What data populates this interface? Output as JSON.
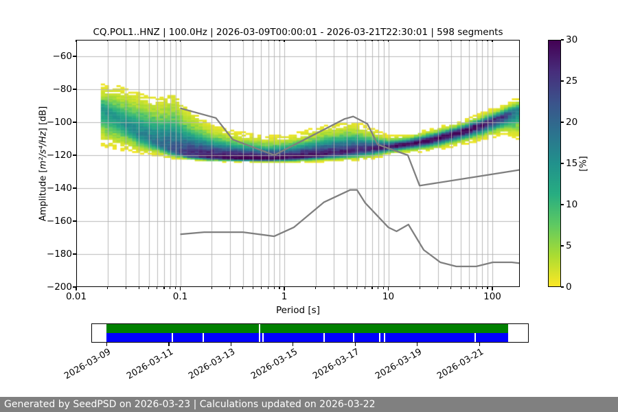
{
  "title": "CQ.POL1..HNZ | 100.0Hz | 2026-03-09T00:00:01 - 2026-03-21T22:30:01 | 598 segments",
  "footer": "Generated by SeedPSD on 2026-03-23 | Calculations updated on 2026-03-22",
  "chart_data": {
    "type": "heatmap",
    "title": "CQ.POL1..HNZ | 100.0Hz | 2026-03-09T00:00:01 - 2026-03-21T22:30:01 | 598 segments",
    "xlabel": "Period [s]",
    "ylabel": {
      "pre": "Amplitude [",
      "math": "m²/s⁴/Hz",
      "post": "] [dB]"
    },
    "xscale": "log",
    "xlim": [
      0.01,
      183.65
    ],
    "ylim": [
      -200,
      -50
    ],
    "grid": true,
    "grid_color": "#b0b0b0",
    "xticks": [
      {
        "v": 0.01,
        "label": "0.01"
      },
      {
        "v": 0.1,
        "label": "0.1"
      },
      {
        "v": 1,
        "label": "1"
      },
      {
        "v": 10,
        "label": "10"
      },
      {
        "v": 100,
        "label": "100"
      }
    ],
    "yticks": [
      {
        "v": -60,
        "label": "−60"
      },
      {
        "v": -80,
        "label": "−80"
      },
      {
        "v": -100,
        "label": "−100"
      },
      {
        "v": -120,
        "label": "−120"
      },
      {
        "v": -140,
        "label": "−140"
      },
      {
        "v": -160,
        "label": "−160"
      },
      {
        "v": -180,
        "label": "−180"
      },
      {
        "v": -200,
        "label": "−200"
      }
    ],
    "colorbar": {
      "label": "[%]",
      "range": [
        0,
        30
      ],
      "ticks": [
        {
          "v": 0,
          "label": "0"
        },
        {
          "v": 5,
          "label": "5"
        },
        {
          "v": 10,
          "label": "10"
        },
        {
          "v": 15,
          "label": "15"
        },
        {
          "v": 20,
          "label": "20"
        },
        {
          "v": 25,
          "label": "25"
        },
        {
          "v": 30,
          "label": "30"
        }
      ],
      "colormap": "viridis_r",
      "viridis_stops": [
        "#440154",
        "#472d7b",
        "#3b528b",
        "#2c728e",
        "#21918c",
        "#27ad81",
        "#5ec962",
        "#aadc32",
        "#fde725"
      ]
    },
    "ppsd_distribution": {
      "comment": "estimated PPSD histogram envelope per period: [period_s, top_dB, mode_dB, bottom_dB, peak_percent]",
      "period_step_octaves": 0.125,
      "period_min": 0.018,
      "keypoints": [
        [
          0.018,
          -81,
          -94,
          -112,
          13
        ],
        [
          0.025,
          -82,
          -99,
          -114,
          13
        ],
        [
          0.04,
          -86,
          -108,
          -117,
          15
        ],
        [
          0.06,
          -90,
          -113,
          -119,
          17
        ],
        [
          0.085,
          -88,
          -117.5,
          -121.5,
          20
        ],
        [
          0.12,
          -97,
          -120.5,
          -122.5,
          24
        ],
        [
          0.2,
          -106,
          -121.5,
          -123.5,
          28
        ],
        [
          0.35,
          -110,
          -122,
          -123.5,
          30
        ],
        [
          0.7,
          -112,
          -122.3,
          -124,
          30
        ],
        [
          1.2,
          -111,
          -121.5,
          -124,
          29
        ],
        [
          2.5,
          -106,
          -120,
          -123,
          27
        ],
        [
          4.5,
          -104,
          -118,
          -122.5,
          25
        ],
        [
          7,
          -107,
          -116.5,
          -121,
          26
        ],
        [
          10,
          -110,
          -115,
          -119,
          28
        ],
        [
          15,
          -109,
          -113.5,
          -117.5,
          29
        ],
        [
          25,
          -106,
          -111,
          -116,
          30
        ],
        [
          50,
          -101,
          -106,
          -112,
          30
        ],
        [
          90,
          -95,
          -100.5,
          -108,
          28
        ],
        [
          130,
          -91,
          -96.5,
          -105,
          24
        ],
        [
          183.65,
          -86.5,
          -92.5,
          -108,
          15
        ]
      ]
    },
    "noise_models": {
      "color": "#7f7f7f",
      "line_width": 2.3,
      "nhnm": [
        [
          0.1,
          -91.5
        ],
        [
          0.22,
          -97.4
        ],
        [
          0.32,
          -110.5
        ],
        [
          0.8,
          -120.0
        ],
        [
          3.8,
          -98.0
        ],
        [
          4.6,
          -96.5
        ],
        [
          6.3,
          -101.0
        ],
        [
          7.9,
          -113.5
        ],
        [
          15.4,
          -120.0
        ],
        [
          20.0,
          -138.5
        ],
        [
          183.65,
          -128.9
        ]
      ],
      "nlnm": [
        [
          0.1,
          -168.0
        ],
        [
          0.17,
          -166.7
        ],
        [
          0.4,
          -166.7
        ],
        [
          0.8,
          -169.2
        ],
        [
          1.24,
          -163.7
        ],
        [
          2.4,
          -148.6
        ],
        [
          4.3,
          -141.1
        ],
        [
          5.0,
          -141.1
        ],
        [
          6.0,
          -149.0
        ],
        [
          10.0,
          -163.8
        ],
        [
          12.0,
          -166.2
        ],
        [
          15.6,
          -162.1
        ],
        [
          21.9,
          -177.5
        ],
        [
          31.6,
          -185.0
        ],
        [
          45.0,
          -187.5
        ],
        [
          70.0,
          -187.5
        ],
        [
          101.0,
          -185.0
        ],
        [
          154.0,
          -185.0
        ],
        [
          183.65,
          -185.6
        ]
      ]
    }
  },
  "timeline": {
    "start": "2026-03-09T00:00:01",
    "end": "2026-03-21T22:30:01",
    "span_days": 12.9375,
    "green_color": "#008000",
    "blue_color": "#0000ff",
    "green_gap_fractions": [
      0.381
    ],
    "blue_gap_fractions": [
      0.164,
      0.241,
      0.381,
      0.39,
      0.542,
      0.615,
      0.68,
      0.692,
      0.918
    ],
    "tick_dates": [
      "2026-03-09",
      "2026-03-11",
      "2026-03-13",
      "2026-03-15",
      "2026-03-17",
      "2026-03-19",
      "2026-03-21"
    ]
  }
}
